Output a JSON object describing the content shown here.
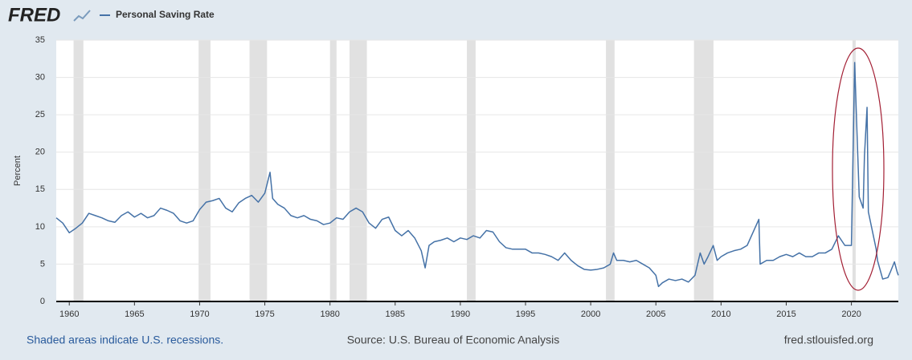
{
  "chart_data": {
    "type": "line",
    "logo": "FRED",
    "ylabel": "Percent",
    "note": "Shaded areas indicate U.S. recessions.",
    "source": "Source: U.S. Bureau of Economic Analysis",
    "site": "fred.stlouisfed.org",
    "xlim": [
      1959,
      2023.6
    ],
    "xticks": [
      1960,
      1965,
      1970,
      1975,
      1980,
      1985,
      1990,
      1995,
      2000,
      2005,
      2010,
      2015,
      2020
    ],
    "ylim": [
      0,
      35
    ],
    "yticks": [
      0,
      5,
      10,
      15,
      20,
      25,
      30,
      35
    ],
    "grid": true,
    "recession_color": "#e1e1e1",
    "recessions": [
      [
        1960.33,
        1961.08
      ],
      [
        1969.92,
        1970.83
      ],
      [
        1973.83,
        1975.17
      ],
      [
        1980.0,
        1980.5
      ],
      [
        1981.5,
        1982.83
      ],
      [
        1990.5,
        1991.17
      ],
      [
        2001.17,
        2001.83
      ],
      [
        2007.92,
        2009.42
      ],
      [
        2020.08,
        2020.33
      ]
    ],
    "x": [
      1959,
      1959.5,
      1960,
      1960.5,
      1961,
      1961.5,
      1962,
      1962.5,
      1963,
      1963.5,
      1964,
      1964.5,
      1965,
      1965.5,
      1966,
      1966.5,
      1967,
      1967.5,
      1968,
      1968.5,
      1969,
      1969.5,
      1970,
      1970.5,
      1971,
      1971.5,
      1972,
      1972.5,
      1973,
      1973.5,
      1974,
      1974.5,
      1975,
      1975.4,
      1975.6,
      1976,
      1976.5,
      1977,
      1977.5,
      1978,
      1978.5,
      1979,
      1979.5,
      1980,
      1980.5,
      1981,
      1981.5,
      1982,
      1982.5,
      1983,
      1983.5,
      1984,
      1984.5,
      1985,
      1985.5,
      1986,
      1986.5,
      1987,
      1987.3,
      1987.6,
      1988,
      1988.5,
      1989,
      1989.5,
      1990,
      1990.5,
      1991,
      1991.5,
      1992,
      1992.5,
      1993,
      1993.5,
      1994,
      1994.5,
      1995,
      1995.5,
      1996,
      1996.5,
      1997,
      1997.5,
      1998,
      1998.5,
      1999,
      1999.5,
      2000,
      2000.5,
      2001,
      2001.5,
      2001.75,
      2002,
      2002.5,
      2003,
      2003.5,
      2004,
      2004.5,
      2005,
      2005.2,
      2005.5,
      2006,
      2006.5,
      2007,
      2007.5,
      2008,
      2008.4,
      2008.7,
      2009,
      2009.4,
      2009.7,
      2010,
      2010.5,
      2011,
      2011.5,
      2012,
      2012.9,
      2013,
      2013.5,
      2014,
      2014.5,
      2015,
      2015.5,
      2016,
      2016.5,
      2017,
      2017.5,
      2018,
      2018.5,
      2019,
      2019.5,
      2020,
      2020.25,
      2020.4,
      2020.6,
      2020.9,
      2021,
      2021.2,
      2021.3,
      2021.6,
      2021.9,
      2022,
      2022.4,
      2022.8,
      2023.0,
      2023.3,
      2023.5,
      2023.6
    ],
    "series": [
      {
        "name": "Personal Saving Rate",
        "color": "#4572a7",
        "values": [
          11.2,
          10.5,
          9.2,
          9.8,
          10.5,
          11.8,
          11.5,
          11.2,
          10.8,
          10.6,
          11.5,
          12.0,
          11.3,
          11.8,
          11.2,
          11.5,
          12.5,
          12.2,
          11.8,
          10.8,
          10.5,
          10.8,
          12.3,
          13.3,
          13.5,
          13.8,
          12.5,
          12.0,
          13.2,
          13.8,
          14.2,
          13.3,
          14.5,
          17.3,
          13.8,
          13.0,
          12.5,
          11.5,
          11.2,
          11.5,
          11.0,
          10.8,
          10.3,
          10.5,
          11.2,
          11.0,
          12.0,
          12.5,
          12.0,
          10.5,
          9.8,
          11.0,
          11.3,
          9.5,
          8.8,
          9.5,
          8.5,
          6.8,
          4.5,
          7.5,
          8.0,
          8.2,
          8.5,
          8.0,
          8.5,
          8.3,
          8.8,
          8.5,
          9.5,
          9.3,
          8.0,
          7.2,
          7.0,
          7.0,
          7.0,
          6.5,
          6.5,
          6.3,
          6.0,
          5.5,
          6.5,
          5.5,
          4.8,
          4.3,
          4.2,
          4.3,
          4.5,
          5.0,
          6.5,
          5.5,
          5.5,
          5.3,
          5.5,
          5.0,
          4.5,
          3.5,
          2.0,
          2.5,
          3.0,
          2.8,
          3.0,
          2.6,
          3.5,
          6.5,
          5.0,
          6.0,
          7.5,
          5.5,
          6.0,
          6.5,
          6.8,
          7.0,
          7.5,
          11.0,
          5.0,
          5.5,
          5.5,
          6.0,
          6.3,
          6.0,
          6.5,
          6.0,
          6.0,
          6.5,
          6.5,
          7.0,
          8.8,
          7.5,
          7.5,
          32.0,
          24.0,
          14.0,
          12.5,
          19.5,
          26.0,
          12.0,
          9.5,
          7.0,
          5.5,
          3.0,
          3.2,
          4.0,
          5.3,
          4.0,
          3.5
        ]
      }
    ]
  }
}
